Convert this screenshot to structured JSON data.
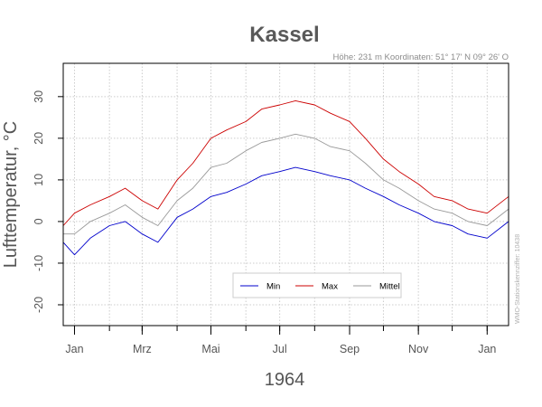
{
  "chart_data": {
    "type": "line",
    "title": "Kassel",
    "meta_text": "Höhe: 231 m   Koordinaten: 51° 17' N  09° 26' O",
    "xlabel": "1964",
    "ylabel": "Lufttemperatur, °C",
    "credit": "WMO-Stationskennziffer: 10438",
    "xlim": [
      "1963-12-22",
      "1965-01-20"
    ],
    "ylim": [
      -25,
      38
    ],
    "y_ticks": [
      -20,
      -10,
      0,
      10,
      20,
      30
    ],
    "x_ticks": [
      {
        "date": "1964-01-01",
        "label": "Jan"
      },
      {
        "date": "1964-03-01",
        "label": "Mrz"
      },
      {
        "date": "1964-05-01",
        "label": "Mai"
      },
      {
        "date": "1964-07-01",
        "label": "Jul"
      },
      {
        "date": "1964-09-01",
        "label": "Sep"
      },
      {
        "date": "1964-11-01",
        "label": "Nov"
      },
      {
        "date": "1965-01-01",
        "label": "Jan"
      }
    ],
    "grid": true,
    "legend_position": "bottom-center",
    "series": [
      {
        "name": "Min",
        "color": "#0000cc",
        "x": [
          "1963-12-22",
          "1964-01-01",
          "1964-01-15",
          "1964-02-01",
          "1964-02-15",
          "1964-03-01",
          "1964-03-15",
          "1964-04-01",
          "1964-04-15",
          "1964-05-01",
          "1964-05-15",
          "1964-06-01",
          "1964-06-15",
          "1964-07-01",
          "1964-07-15",
          "1964-08-01",
          "1964-08-15",
          "1964-09-01",
          "1964-09-15",
          "1964-10-01",
          "1964-10-15",
          "1964-11-01",
          "1964-11-15",
          "1964-12-01",
          "1964-12-15",
          "1965-01-01",
          "1965-01-20"
        ],
        "values": [
          -5,
          -8,
          -4,
          -1,
          0,
          -3,
          -5,
          1,
          3,
          6,
          7,
          9,
          11,
          12,
          13,
          12,
          11,
          10,
          8,
          6,
          4,
          2,
          0,
          -1,
          -3,
          -4,
          0
        ]
      },
      {
        "name": "Max",
        "color": "#cc0000",
        "x": [
          "1963-12-22",
          "1964-01-01",
          "1964-01-15",
          "1964-02-01",
          "1964-02-15",
          "1964-03-01",
          "1964-03-15",
          "1964-04-01",
          "1964-04-15",
          "1964-05-01",
          "1964-05-15",
          "1964-06-01",
          "1964-06-15",
          "1964-07-01",
          "1964-07-15",
          "1964-08-01",
          "1964-08-15",
          "1964-09-01",
          "1964-09-15",
          "1964-10-01",
          "1964-10-15",
          "1964-11-01",
          "1964-11-15",
          "1964-12-01",
          "1964-12-15",
          "1965-01-01",
          "1965-01-20"
        ],
        "values": [
          -1,
          2,
          4,
          6,
          8,
          5,
          3,
          10,
          14,
          20,
          22,
          24,
          27,
          28,
          29,
          28,
          26,
          24,
          20,
          15,
          12,
          9,
          6,
          5,
          3,
          2,
          6
        ]
      },
      {
        "name": "Mittel",
        "color": "#999999",
        "x": [
          "1963-12-22",
          "1964-01-01",
          "1964-01-15",
          "1964-02-01",
          "1964-02-15",
          "1964-03-01",
          "1964-03-15",
          "1964-04-01",
          "1964-04-15",
          "1964-05-01",
          "1964-05-15",
          "1964-06-01",
          "1964-06-15",
          "1964-07-01",
          "1964-07-15",
          "1964-08-01",
          "1964-08-15",
          "1964-09-01",
          "1964-09-15",
          "1964-10-01",
          "1964-10-15",
          "1964-11-01",
          "1964-11-15",
          "1964-12-01",
          "1964-12-15",
          "1965-01-01",
          "1965-01-20"
        ],
        "values": [
          -3,
          -3,
          0,
          2,
          4,
          1,
          -1,
          5,
          8,
          13,
          14,
          17,
          19,
          20,
          21,
          20,
          18,
          17,
          14,
          10,
          8,
          5,
          3,
          2,
          0,
          -1,
          3
        ]
      }
    ]
  }
}
